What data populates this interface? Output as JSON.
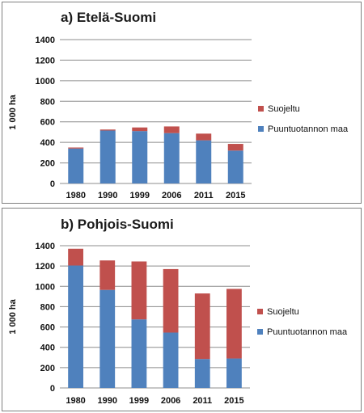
{
  "chart_data": [
    {
      "type": "bar",
      "stacked": true,
      "title": "a) Etelä-Suomi",
      "ylabel": "1 000 ha",
      "ylim": [
        0,
        1400
      ],
      "yticks": [
        0,
        200,
        400,
        600,
        800,
        1000,
        1200,
        1400
      ],
      "grid": true,
      "legend_position": "right",
      "categories": [
        "1980",
        "1990",
        "1999",
        "2006",
        "2011",
        "2015"
      ],
      "series": [
        {
          "name": "Puuntuotannon maa",
          "color": "#4f81bd",
          "values": [
            340,
            515,
            510,
            490,
            420,
            320
          ]
        },
        {
          "name": "Suojeltu",
          "color": "#c0504d",
          "values": [
            10,
            10,
            35,
            65,
            65,
            65
          ]
        }
      ]
    },
    {
      "type": "bar",
      "stacked": true,
      "title": "b) Pohjois-Suomi",
      "ylabel": "1 000 ha",
      "ylim": [
        0,
        1400
      ],
      "yticks": [
        0,
        200,
        400,
        600,
        800,
        1000,
        1200,
        1400
      ],
      "grid": true,
      "legend_position": "right",
      "categories": [
        "1980",
        "1990",
        "1999",
        "2006",
        "2011",
        "2015"
      ],
      "series": [
        {
          "name": "Puuntuotannon maa",
          "color": "#4f81bd",
          "values": [
            1205,
            965,
            675,
            545,
            285,
            290
          ]
        },
        {
          "name": "Suojeltu",
          "color": "#c0504d",
          "values": [
            165,
            290,
            570,
            625,
            645,
            685
          ]
        }
      ]
    }
  ]
}
